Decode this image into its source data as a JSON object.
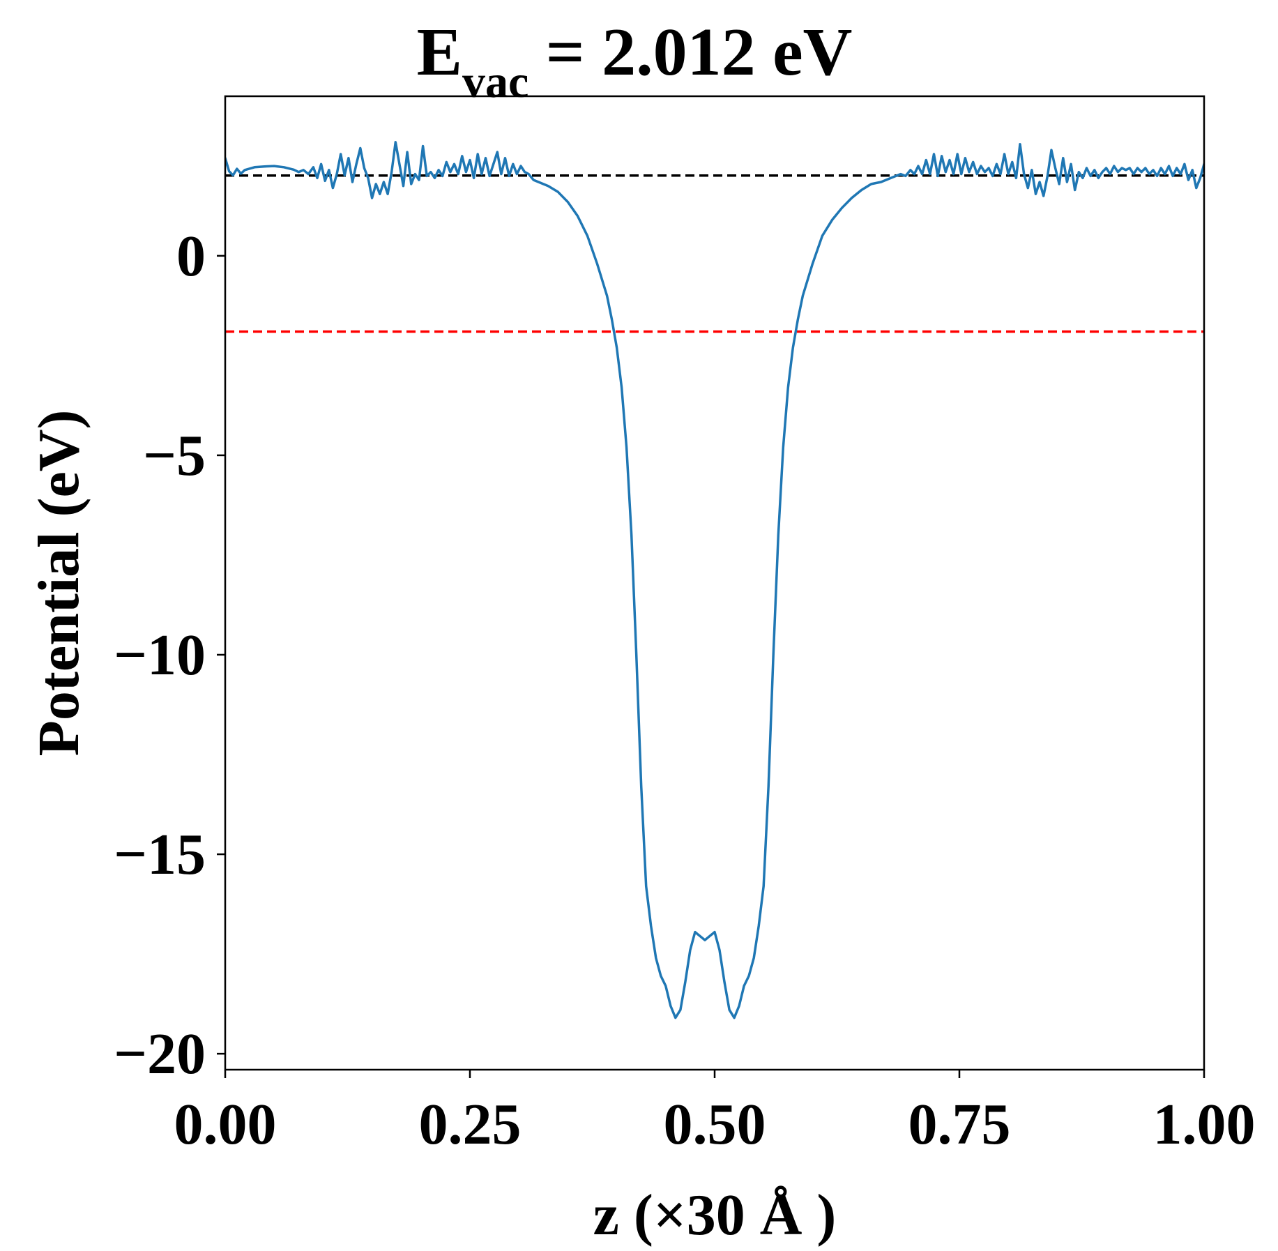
{
  "chart_data": {
    "type": "line",
    "title": {
      "main": "E",
      "subscript": "vac",
      "rest": " = 2.012 eV"
    },
    "xlabel": "z (×30 Å )",
    "ylabel": "Potential (eV)",
    "xlim": [
      0,
      1
    ],
    "ylim": [
      -20.4,
      4.0
    ],
    "x_ticks": [
      0,
      0.25,
      0.5,
      0.75,
      1.0
    ],
    "x_tick_labels": [
      "0.00",
      "0.25",
      "0.50",
      "0.75",
      "1.00"
    ],
    "y_ticks": [
      0,
      -5,
      -10,
      -15,
      -20
    ],
    "y_tick_labels": [
      "0",
      "−5",
      "−10",
      "−15",
      "−20"
    ],
    "reference_lines": [
      {
        "name": "vacuum-level",
        "y": 2.012,
        "color": "#000000",
        "style": "dashed"
      },
      {
        "name": "fermi-level",
        "y": -1.9,
        "color": "#ff0000",
        "style": "dashed"
      }
    ],
    "series": [
      {
        "name": "planar-average-potential",
        "color": "#1f77b4",
        "points": [
          [
            0.0,
            2.45
          ],
          [
            0.004,
            2.12
          ],
          [
            0.008,
            2.02
          ],
          [
            0.012,
            2.18
          ],
          [
            0.016,
            2.06
          ],
          [
            0.02,
            2.15
          ],
          [
            0.03,
            2.22
          ],
          [
            0.04,
            2.24
          ],
          [
            0.05,
            2.25
          ],
          [
            0.06,
            2.22
          ],
          [
            0.07,
            2.16
          ],
          [
            0.075,
            2.1
          ],
          [
            0.08,
            2.15
          ],
          [
            0.085,
            2.05
          ],
          [
            0.09,
            2.22
          ],
          [
            0.094,
            1.95
          ],
          [
            0.098,
            2.3
          ],
          [
            0.102,
            1.88
          ],
          [
            0.106,
            2.15
          ],
          [
            0.11,
            1.7
          ],
          [
            0.114,
            2.05
          ],
          [
            0.118,
            2.55
          ],
          [
            0.122,
            2.02
          ],
          [
            0.126,
            2.45
          ],
          [
            0.13,
            1.85
          ],
          [
            0.134,
            2.3
          ],
          [
            0.138,
            2.7
          ],
          [
            0.142,
            2.2
          ],
          [
            0.146,
            1.95
          ],
          [
            0.15,
            1.45
          ],
          [
            0.154,
            1.8
          ],
          [
            0.158,
            1.55
          ],
          [
            0.162,
            1.85
          ],
          [
            0.166,
            1.55
          ],
          [
            0.17,
            2.1
          ],
          [
            0.174,
            2.85
          ],
          [
            0.178,
            2.3
          ],
          [
            0.182,
            1.75
          ],
          [
            0.186,
            2.6
          ],
          [
            0.19,
            1.8
          ],
          [
            0.194,
            2.05
          ],
          [
            0.198,
            1.9
          ],
          [
            0.202,
            2.75
          ],
          [
            0.206,
            2.0
          ],
          [
            0.21,
            2.1
          ],
          [
            0.214,
            1.95
          ],
          [
            0.218,
            2.15
          ],
          [
            0.222,
            2.0
          ],
          [
            0.226,
            2.35
          ],
          [
            0.23,
            2.1
          ],
          [
            0.234,
            2.3
          ],
          [
            0.238,
            2.05
          ],
          [
            0.242,
            2.5
          ],
          [
            0.246,
            2.1
          ],
          [
            0.25,
            2.4
          ],
          [
            0.254,
            1.95
          ],
          [
            0.258,
            2.55
          ],
          [
            0.262,
            2.05
          ],
          [
            0.266,
            2.45
          ],
          [
            0.27,
            2.0
          ],
          [
            0.274,
            2.3
          ],
          [
            0.278,
            2.6
          ],
          [
            0.282,
            2.05
          ],
          [
            0.286,
            2.45
          ],
          [
            0.29,
            2.0
          ],
          [
            0.294,
            2.3
          ],
          [
            0.298,
            2.05
          ],
          [
            0.302,
            2.25
          ],
          [
            0.306,
            2.1
          ],
          [
            0.31,
            2.05
          ],
          [
            0.315,
            1.9
          ],
          [
            0.32,
            1.85
          ],
          [
            0.33,
            1.75
          ],
          [
            0.34,
            1.6
          ],
          [
            0.35,
            1.35
          ],
          [
            0.36,
            1.0
          ],
          [
            0.37,
            0.5
          ],
          [
            0.38,
            -0.2
          ],
          [
            0.39,
            -1.0
          ],
          [
            0.395,
            -1.6
          ],
          [
            0.4,
            -2.3
          ],
          [
            0.405,
            -3.3
          ],
          [
            0.41,
            -4.8
          ],
          [
            0.415,
            -7.0
          ],
          [
            0.42,
            -10.0
          ],
          [
            0.425,
            -13.3
          ],
          [
            0.43,
            -15.8
          ],
          [
            0.435,
            -16.8
          ],
          [
            0.44,
            -17.6
          ],
          [
            0.445,
            -18.05
          ],
          [
            0.45,
            -18.3
          ],
          [
            0.455,
            -18.8
          ],
          [
            0.46,
            -19.1
          ],
          [
            0.465,
            -18.9
          ],
          [
            0.47,
            -18.2
          ],
          [
            0.475,
            -17.4
          ],
          [
            0.48,
            -16.95
          ],
          [
            0.485,
            -17.05
          ],
          [
            0.49,
            -17.15
          ],
          [
            0.495,
            -17.05
          ],
          [
            0.5,
            -16.95
          ],
          [
            0.505,
            -17.4
          ],
          [
            0.51,
            -18.2
          ],
          [
            0.515,
            -18.9
          ],
          [
            0.52,
            -19.1
          ],
          [
            0.525,
            -18.8
          ],
          [
            0.53,
            -18.3
          ],
          [
            0.535,
            -18.05
          ],
          [
            0.54,
            -17.6
          ],
          [
            0.545,
            -16.8
          ],
          [
            0.55,
            -15.8
          ],
          [
            0.555,
            -13.3
          ],
          [
            0.56,
            -10.0
          ],
          [
            0.565,
            -7.0
          ],
          [
            0.57,
            -4.8
          ],
          [
            0.575,
            -3.3
          ],
          [
            0.58,
            -2.3
          ],
          [
            0.585,
            -1.6
          ],
          [
            0.59,
            -1.0
          ],
          [
            0.6,
            -0.2
          ],
          [
            0.61,
            0.5
          ],
          [
            0.62,
            0.9
          ],
          [
            0.63,
            1.2
          ],
          [
            0.64,
            1.45
          ],
          [
            0.65,
            1.65
          ],
          [
            0.66,
            1.8
          ],
          [
            0.67,
            1.85
          ],
          [
            0.68,
            1.95
          ],
          [
            0.69,
            2.05
          ],
          [
            0.695,
            2.0
          ],
          [
            0.7,
            2.15
          ],
          [
            0.704,
            2.05
          ],
          [
            0.708,
            2.25
          ],
          [
            0.712,
            2.05
          ],
          [
            0.716,
            2.4
          ],
          [
            0.72,
            2.05
          ],
          [
            0.724,
            2.55
          ],
          [
            0.728,
            2.0
          ],
          [
            0.732,
            2.5
          ],
          [
            0.736,
            2.1
          ],
          [
            0.74,
            2.4
          ],
          [
            0.744,
            2.05
          ],
          [
            0.748,
            2.55
          ],
          [
            0.752,
            2.05
          ],
          [
            0.756,
            2.45
          ],
          [
            0.76,
            2.1
          ],
          [
            0.764,
            2.35
          ],
          [
            0.768,
            2.05
          ],
          [
            0.772,
            2.25
          ],
          [
            0.776,
            2.1
          ],
          [
            0.78,
            2.2
          ],
          [
            0.784,
            2.0
          ],
          [
            0.788,
            2.3
          ],
          [
            0.792,
            2.05
          ],
          [
            0.796,
            2.55
          ],
          [
            0.8,
            2.05
          ],
          [
            0.804,
            2.35
          ],
          [
            0.808,
            1.95
          ],
          [
            0.812,
            2.8
          ],
          [
            0.816,
            2.05
          ],
          [
            0.82,
            1.7
          ],
          [
            0.824,
            2.15
          ],
          [
            0.828,
            1.55
          ],
          [
            0.832,
            1.85
          ],
          [
            0.836,
            1.5
          ],
          [
            0.84,
            2.0
          ],
          [
            0.844,
            2.65
          ],
          [
            0.848,
            2.2
          ],
          [
            0.852,
            1.8
          ],
          [
            0.856,
            2.45
          ],
          [
            0.86,
            1.85
          ],
          [
            0.864,
            2.3
          ],
          [
            0.868,
            1.65
          ],
          [
            0.872,
            2.1
          ],
          [
            0.876,
            1.95
          ],
          [
            0.88,
            2.2
          ],
          [
            0.884,
            2.0
          ],
          [
            0.888,
            2.15
          ],
          [
            0.892,
            1.95
          ],
          [
            0.896,
            2.1
          ],
          [
            0.9,
            2.2
          ],
          [
            0.904,
            2.05
          ],
          [
            0.908,
            2.25
          ],
          [
            0.912,
            2.1
          ],
          [
            0.916,
            2.2
          ],
          [
            0.92,
            2.15
          ],
          [
            0.924,
            2.2
          ],
          [
            0.928,
            2.05
          ],
          [
            0.932,
            2.2
          ],
          [
            0.936,
            2.1
          ],
          [
            0.94,
            2.2
          ],
          [
            0.944,
            2.05
          ],
          [
            0.948,
            2.15
          ],
          [
            0.952,
            2.0
          ],
          [
            0.956,
            2.2
          ],
          [
            0.96,
            2.05
          ],
          [
            0.964,
            2.25
          ],
          [
            0.968,
            2.0
          ],
          [
            0.972,
            2.2
          ],
          [
            0.976,
            2.05
          ],
          [
            0.98,
            2.3
          ],
          [
            0.984,
            1.9
          ],
          [
            0.988,
            2.15
          ],
          [
            0.992,
            1.7
          ],
          [
            0.996,
            1.95
          ],
          [
            1.0,
            2.3
          ]
        ]
      }
    ]
  }
}
